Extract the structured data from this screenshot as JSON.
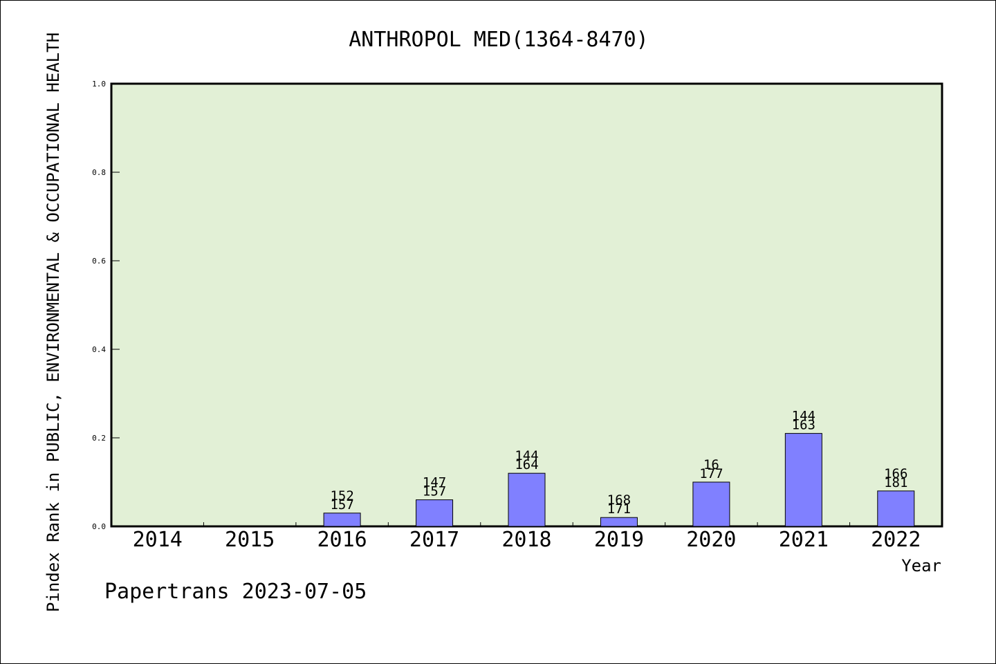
{
  "chart_data": {
    "type": "bar",
    "title": "ANTHROPOL MED(1364-8470)",
    "xlabel": "Year",
    "ylabel": "Pindex Rank in PUBLIC, ENVIRONMENTAL & OCCUPATIONAL HEALTH",
    "categories": [
      "2014",
      "2015",
      "2016",
      "2017",
      "2018",
      "2019",
      "2020",
      "2021",
      "2022"
    ],
    "values": [
      null,
      null,
      0.03,
      0.06,
      0.12,
      0.02,
      0.1,
      0.21,
      0.08
    ],
    "labels_top": [
      "",
      "",
      "152",
      "147",
      "144",
      "168",
      "16",
      "144",
      "166"
    ],
    "labels_bottom": [
      "",
      "",
      "157",
      "157",
      "164",
      "171",
      "177",
      "163",
      "181"
    ],
    "ylim": [
      0,
      1.0
    ],
    "yticks": [
      "0.0",
      "0.2",
      "0.4",
      "0.6",
      "0.8",
      "1.0"
    ],
    "grid": false,
    "colors": {
      "plot_background": "#e2f0d6",
      "bar_fill": "#8080ff",
      "bar_stroke": "#000000"
    }
  },
  "footer": {
    "text": "Papertrans 2023-07-05"
  }
}
